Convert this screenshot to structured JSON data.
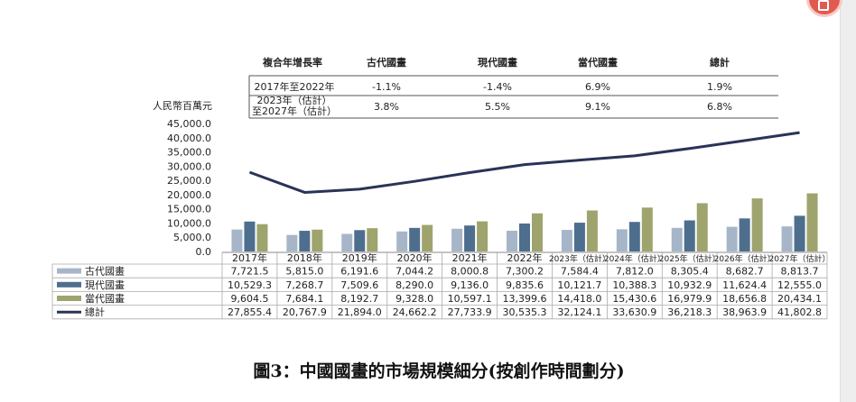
{
  "cagr_table": {
    "header": [
      "複合年增長率",
      "古代國畫",
      "現代國畫",
      "當代國畫",
      "總計"
    ],
    "rows": [
      {
        "period": [
          "2017年至2022年"
        ],
        "values": [
          "-1.1%",
          "-1.4%",
          "6.9%",
          "1.9%"
        ]
      },
      {
        "period": [
          "2023年（估計）",
          "至2027年（估計）"
        ],
        "values": [
          "3.8%",
          "5.5%",
          "9.1%",
          "6.8%"
        ]
      }
    ]
  },
  "caption": "圖3：中國國畫的市場規模細分(按創作時間劃分)",
  "colors": {
    "ancient": "#a6b6c8",
    "modern": "#4e6e8e",
    "contemporary": "#9fa36d",
    "total": "#2a3358"
  },
  "chart_data": {
    "type": "bar",
    "ylabel": "人民幣百萬元",
    "ylim": [
      0,
      45000
    ],
    "yticks": [
      "45,000.0",
      "40,000.0",
      "35,000.0",
      "30,000.0",
      "25,000.0",
      "20,000.0",
      "15,000.0",
      "10,000.0",
      "5,000.0",
      "0.0"
    ],
    "categories": [
      "2017年",
      "2018年",
      "2019年",
      "2020年",
      "2021年",
      "2022年",
      "2023年（估計）",
      "2024年（估計）",
      "2025年（估計）",
      "2026年（估計）",
      "2027年（估計）"
    ],
    "series": [
      {
        "name": "古代國畫",
        "type": "bar",
        "values": [
          7721.5,
          5815.0,
          6191.6,
          7044.2,
          8000.8,
          7300.2,
          7584.4,
          7812.0,
          8305.4,
          8682.7,
          8813.7
        ],
        "labels": [
          "7,721.5",
          "5,815.0",
          "6,191.6",
          "7,044.2",
          "8,000.8",
          "7,300.2",
          "7,584.4",
          "7,812.0",
          "8,305.4",
          "8,682.7",
          "8,813.7"
        ]
      },
      {
        "name": "現代國畫",
        "type": "bar",
        "values": [
          10529.3,
          7268.7,
          7509.6,
          8290.0,
          9136.0,
          9835.6,
          10121.7,
          10388.3,
          10932.9,
          11624.4,
          12555.0
        ],
        "labels": [
          "10,529.3",
          "7,268.7",
          "7,509.6",
          "8,290.0",
          "9,136.0",
          "9,835.6",
          "10,121.7",
          "10,388.3",
          "10,932.9",
          "11,624.4",
          "12,555.0"
        ]
      },
      {
        "name": "當代國畫",
        "type": "bar",
        "values": [
          9604.5,
          7684.1,
          8192.7,
          9328.0,
          10597.1,
          13399.6,
          14418.0,
          15430.6,
          16979.9,
          18656.8,
          20434.1
        ],
        "labels": [
          "9,604.5",
          "7,684.1",
          "8,192.7",
          "9,328.0",
          "10,597.1",
          "13,399.6",
          "14,418.0",
          "15,430.6",
          "16,979.9",
          "18,656.8",
          "20,434.1"
        ]
      },
      {
        "name": "總計",
        "type": "line",
        "values": [
          27855.4,
          20767.9,
          21894.0,
          24662.2,
          27733.9,
          30535.3,
          32124.1,
          33630.9,
          36218.3,
          38963.9,
          41802.8
        ],
        "labels": [
          "27,855.4",
          "20,767.9",
          "21,894.0",
          "24,662.2",
          "27,733.9",
          "30,535.3",
          "32,124.1",
          "33,630.9",
          "36,218.3",
          "38,963.9",
          "41,802.8"
        ]
      }
    ]
  }
}
